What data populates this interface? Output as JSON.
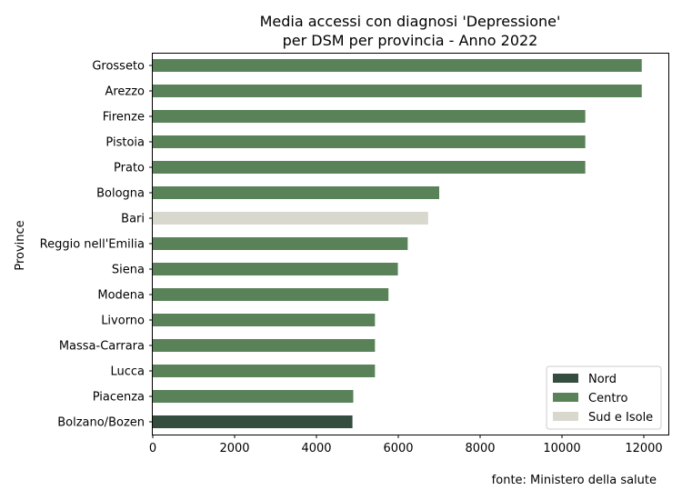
{
  "chart_data": {
    "type": "bar",
    "orientation": "horizontal",
    "title_line1": "Media accessi con diagnosi 'Depressione'",
    "title_line2": "per DSM per provincia - Anno 2022",
    "ylabel": "Province",
    "xlabel": "",
    "xlim": [
      0,
      12600
    ],
    "x_ticks": [
      0,
      2000,
      4000,
      6000,
      8000,
      10000,
      12000
    ],
    "x_tick_labels": [
      "0",
      "2000",
      "4000",
      "6000",
      "8000",
      "10000",
      "12000"
    ],
    "grid": false,
    "categories": [
      "Grosseto",
      "Arezzo",
      "Firenze",
      "Pistoia",
      "Prato",
      "Bologna",
      "Bari",
      "Reggio nell'Emilia",
      "Siena",
      "Modena",
      "Livorno",
      "Massa-Carrara",
      "Lucca",
      "Piacenza",
      "Bolzano/Bozen"
    ],
    "values": [
      11950,
      11950,
      10570,
      10570,
      10570,
      7000,
      6730,
      6230,
      5990,
      5760,
      5430,
      5430,
      5430,
      4900,
      4880
    ],
    "groups": [
      "Centro",
      "Centro",
      "Centro",
      "Centro",
      "Centro",
      "Centro",
      "Sud e Isole",
      "Centro",
      "Centro",
      "Centro",
      "Centro",
      "Centro",
      "Centro",
      "Centro",
      "Nord"
    ],
    "legend": {
      "placement": "lower-right",
      "entries": [
        {
          "label": "Nord",
          "color": "#344d3e"
        },
        {
          "label": "Centro",
          "color": "#5a8259"
        },
        {
          "label": "Sud e Isole",
          "color": "#d9d8ce"
        }
      ]
    },
    "footnote": "fonte: Ministero della salute"
  }
}
